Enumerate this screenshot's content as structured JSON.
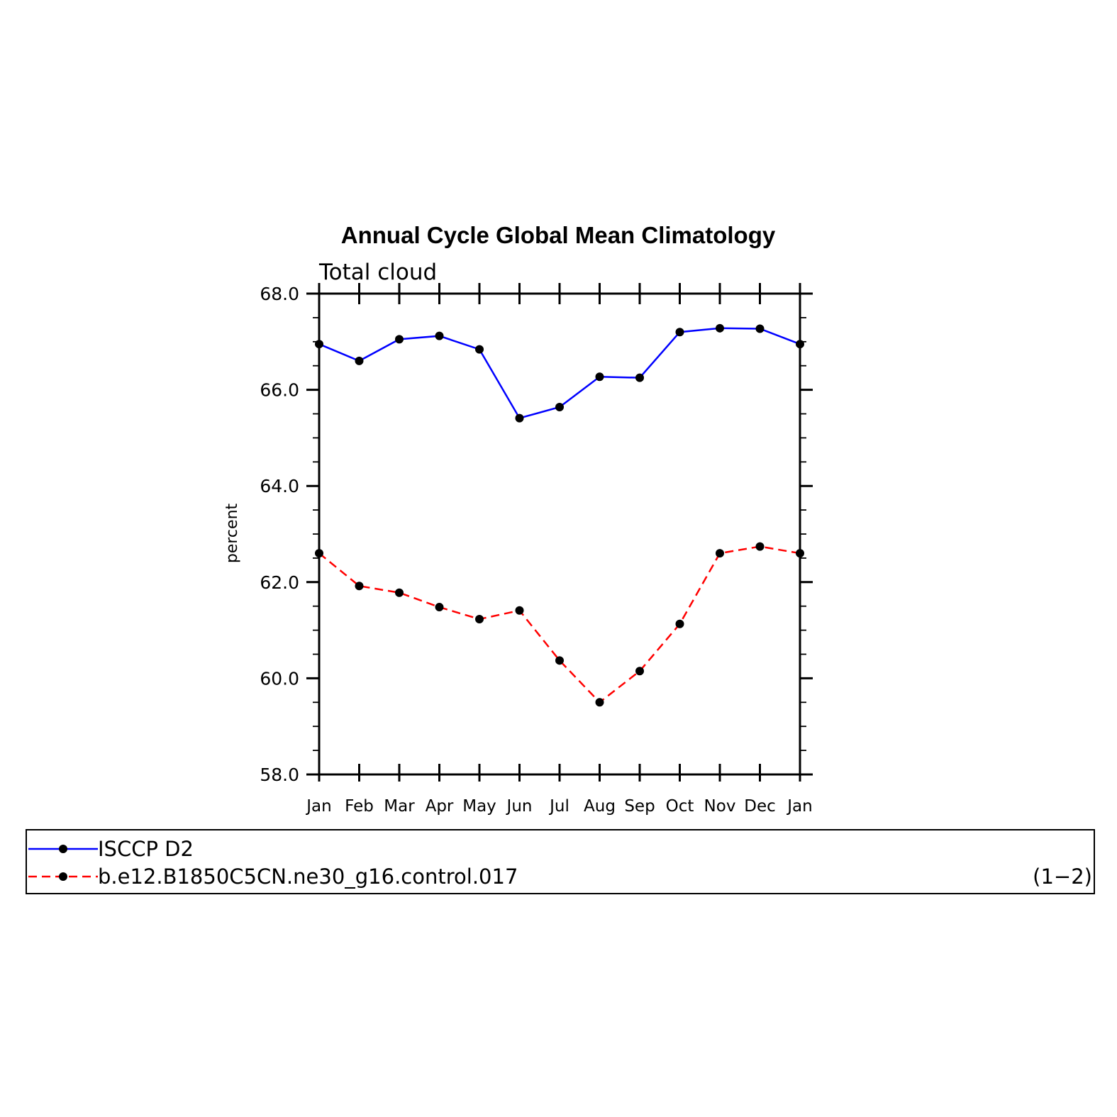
{
  "chart_data": {
    "type": "line",
    "title": "Annual Cycle Global Mean Climatology",
    "subtitle": "Total cloud",
    "ylabel": "percent",
    "xlabel": "",
    "ylim": [
      58.0,
      68.0
    ],
    "yticks": [
      "58.0",
      "60.0",
      "62.0",
      "64.0",
      "66.0",
      "68.0"
    ],
    "categories": [
      "Jan",
      "Feb",
      "Mar",
      "Apr",
      "May",
      "Jun",
      "Jul",
      "Aug",
      "Sep",
      "Oct",
      "Nov",
      "Dec",
      "Jan"
    ],
    "grid": false,
    "legend_position": "bottom",
    "legend_index": "(1−2)",
    "series": [
      {
        "name": "ISCCP D2",
        "color": "#0000ff",
        "dash": "solid",
        "values": [
          66.95,
          66.6,
          67.05,
          67.12,
          66.84,
          65.41,
          65.64,
          66.27,
          66.25,
          67.2,
          67.28,
          67.27,
          66.95
        ]
      },
      {
        "name": "b.e12.B1850C5CN.ne30_g16.control.017",
        "color": "#ff0000",
        "dash": "dashed",
        "values": [
          62.6,
          61.92,
          61.78,
          61.48,
          61.23,
          61.41,
          60.37,
          59.5,
          60.15,
          61.13,
          62.6,
          62.74,
          62.6
        ]
      }
    ]
  }
}
